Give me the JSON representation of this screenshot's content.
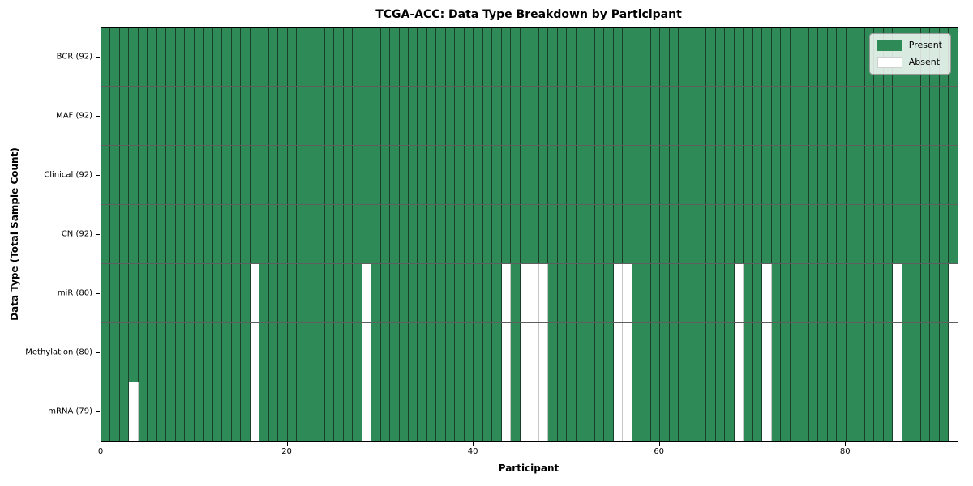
{
  "chart_data": {
    "type": "heatmap",
    "title": "TCGA-ACC: Data Type Breakdown by Participant",
    "xlabel": "Participant",
    "ylabel": "Data Type (Total Sample Count)",
    "n_participants": 92,
    "x_range": [
      0,
      92
    ],
    "x_ticks": [
      0,
      20,
      40,
      60,
      80
    ],
    "grid": true,
    "legend_position": "upper right",
    "colors": {
      "present": "#2e8b57",
      "absent": "#ffffff"
    },
    "legend": [
      {
        "label": "Present",
        "color": "#2e8b57"
      },
      {
        "label": "Absent",
        "color": "#ffffff"
      }
    ],
    "rows": [
      {
        "label": "BCR (92)",
        "total": 92,
        "absent": []
      },
      {
        "label": "MAF (92)",
        "total": 92,
        "absent": []
      },
      {
        "label": "Clinical (92)",
        "total": 92,
        "absent": []
      },
      {
        "label": "CN (92)",
        "total": 92,
        "absent": []
      },
      {
        "label": "miR (80)",
        "total": 80,
        "absent": [
          16,
          28,
          43,
          45,
          46,
          47,
          55,
          56,
          68,
          71,
          85,
          91
        ]
      },
      {
        "label": "Methylation (80)",
        "total": 80,
        "absent": [
          16,
          28,
          43,
          45,
          46,
          47,
          55,
          56,
          68,
          71,
          85,
          91
        ]
      },
      {
        "label": "mRNA (79)",
        "total": 79,
        "absent": [
          3,
          16,
          28,
          43,
          45,
          46,
          47,
          55,
          56,
          68,
          71,
          85,
          91
        ]
      }
    ]
  }
}
